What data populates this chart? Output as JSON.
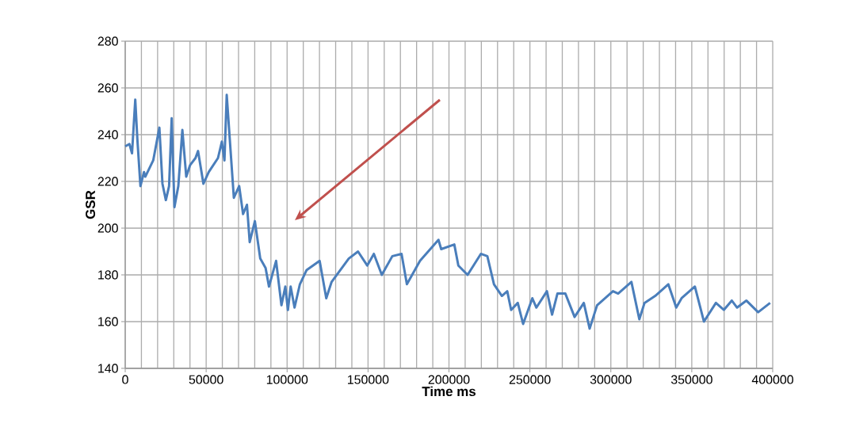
{
  "chart_data": {
    "type": "line",
    "xlabel": "Time ms",
    "ylabel": "GSR",
    "x": [
      0,
      2600,
      4200,
      6200,
      7500,
      9400,
      11600,
      12400,
      17300,
      21100,
      23000,
      25100,
      27100,
      28700,
      30400,
      32800,
      35300,
      37700,
      40100,
      43400,
      45000,
      48300,
      51600,
      57300,
      59700,
      61300,
      62700,
      64300,
      67100,
      70400,
      72800,
      75200,
      76900,
      80100,
      83400,
      86700,
      88800,
      93200,
      96500,
      98900,
      100500,
      102200,
      104600,
      107900,
      112000,
      120100,
      124200,
      127500,
      138100,
      143800,
      149500,
      153600,
      158500,
      165000,
      170700,
      174000,
      182100,
      193500,
      195200,
      203300,
      205800,
      211500,
      219700,
      223700,
      227800,
      232700,
      236000,
      238400,
      242500,
      245800,
      251500,
      254000,
      260500,
      263700,
      267000,
      271900,
      277600,
      283300,
      286900,
      291500,
      301300,
      304500,
      312700,
      317600,
      320800,
      327400,
      335500,
      340400,
      343700,
      351900,
      357500,
      364900,
      369800,
      374700,
      378000,
      383700,
      391000,
      398400
    ],
    "series": [
      {
        "color": "#4a7ebb",
        "values": [
          235,
          236,
          232,
          255,
          238,
          218,
          224,
          222,
          229,
          243,
          219,
          212,
          218,
          247,
          209,
          218,
          242,
          222,
          227,
          230,
          233,
          219,
          224,
          230,
          237,
          229,
          257,
          241,
          213,
          218,
          206,
          210,
          194,
          203,
          187,
          183,
          175,
          186,
          167,
          175,
          165,
          175,
          166,
          176,
          182,
          186,
          170,
          177,
          187,
          190,
          184,
          189,
          180,
          188,
          189,
          176,
          186,
          195,
          191,
          193,
          184,
          180,
          189,
          188,
          176,
          171,
          173,
          165,
          168,
          159,
          170,
          166,
          173,
          163,
          172,
          172,
          162,
          168,
          157,
          167,
          173,
          172,
          177,
          161,
          168,
          171,
          176,
          166,
          170,
          175,
          160,
          168,
          165,
          169,
          166,
          169,
          164,
          168
        ]
      }
    ],
    "xlim": [
      0,
      400000
    ],
    "ylim": [
      140,
      280
    ],
    "xticks": [
      0,
      50000,
      100000,
      150000,
      200000,
      250000,
      300000,
      350000,
      400000
    ],
    "yticks": [
      140,
      160,
      180,
      200,
      220,
      240,
      260,
      280
    ],
    "grid": true,
    "marker": "none",
    "line_style": "solid"
  }
}
